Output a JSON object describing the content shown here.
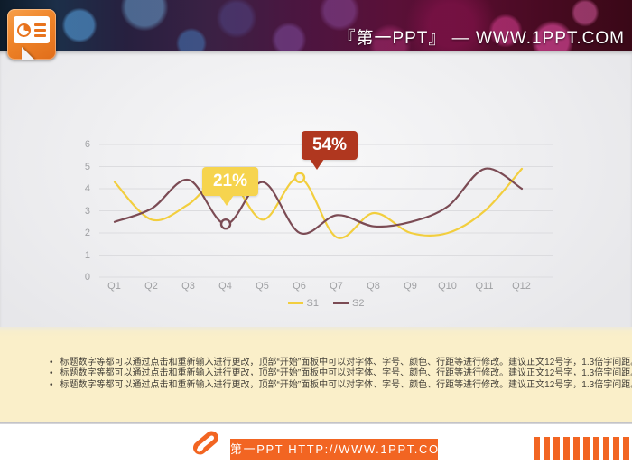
{
  "header": {
    "title": "『第一PPT』 — WWW.1PPT.COM"
  },
  "chart_data": {
    "type": "line",
    "title": "",
    "categories": [
      "Q1",
      "Q2",
      "Q3",
      "Q4",
      "Q5",
      "Q6",
      "Q7",
      "Q8",
      "Q9",
      "Q10",
      "Q11",
      "Q12"
    ],
    "series": [
      {
        "name": "S1",
        "color": "#F2CE3E",
        "values": [
          4.3,
          2.6,
          3.3,
          4.6,
          2.6,
          4.5,
          1.8,
          2.9,
          2.0,
          2.0,
          3.0,
          4.9
        ]
      },
      {
        "name": "S2",
        "color": "#7B4B54",
        "values": [
          2.5,
          3.1,
          4.4,
          2.4,
          4.3,
          2.0,
          2.8,
          2.3,
          2.5,
          3.2,
          4.9,
          4.0
        ]
      }
    ],
    "xlabel": "",
    "ylabel": "",
    "ylim": [
      0,
      6
    ],
    "yticks": [
      0,
      1,
      2,
      3,
      4,
      5,
      6
    ],
    "grid": true,
    "gridline_color": "#dcdcdf",
    "legend_position": "bottom",
    "annotations": [
      {
        "label": "21%",
        "color": "#F6D44E",
        "text_color": "#FFFFFF",
        "series": "S2",
        "category": "Q4",
        "value": 2.4
      },
      {
        "label": "54%",
        "color": "#B0371F",
        "text_color": "#FFFFFF",
        "series": "S1",
        "category": "Q6",
        "value": 4.5
      }
    ]
  },
  "notes": {
    "bullets": [
      "标题数字等都可以通过点击和重新输入进行更改，顶部“开始”面板中可以对字体、字号、颜色、行距等进行修改。建议正文12号字，1.3倍字间距。",
      "标题数字等都可以通过点击和重新输入进行更改，顶部“开始”面板中可以对字体、字号、颜色、行距等进行修改。建议正文12号字，1.3倍字间距。",
      "标题数字等都可以通过点击和重新输入进行更改，顶部“开始”面板中可以对字体、字号、颜色、行距等进行修改。建议正文12号字，1.3倍字间距。"
    ]
  },
  "footer": {
    "site_label": "第一PPT HTTP://WWW.1PPT.COM"
  },
  "colors": {
    "accent_orange": "#F26522",
    "note_band_beige": "#FAEFC9"
  }
}
